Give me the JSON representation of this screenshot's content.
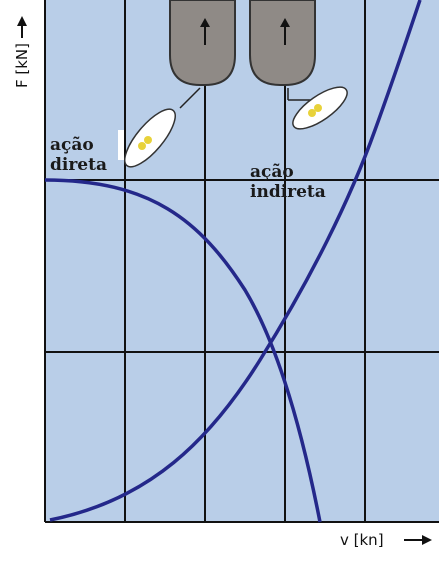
{
  "axes": {
    "y_label": "F [kN]",
    "x_label": "v [kn]"
  },
  "labels": {
    "direct": [
      "ação",
      "direta"
    ],
    "indirect": [
      "ação",
      "indireta"
    ]
  }
}
